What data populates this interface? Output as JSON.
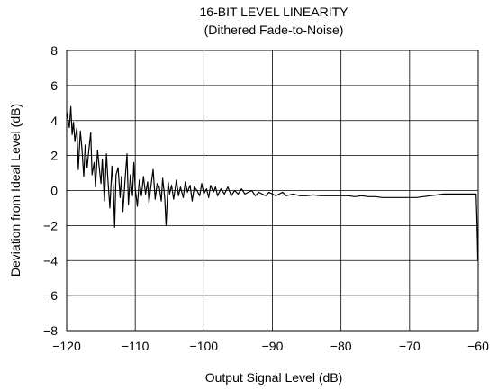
{
  "chart_data": {
    "type": "line",
    "title": "16-BIT LEVEL LINEARITY",
    "subtitle": "(Dithered Fade-to-Noise)",
    "xlabel": "Output Signal Level (dB)",
    "ylabel": "Deviation from Ideal Level (dB)",
    "xlim": [
      -120,
      -60
    ],
    "ylim": [
      -8,
      8
    ],
    "xticks": [
      -120,
      -110,
      -100,
      -90,
      -80,
      -70,
      -60
    ],
    "yticks": [
      -8,
      -6,
      -4,
      -2,
      0,
      2,
      4,
      6,
      8
    ],
    "xtick_labels": [
      "−120",
      "−110",
      "−100",
      "−90",
      "−80",
      "−70",
      "−60"
    ],
    "ytick_labels": [
      "−8",
      "−6",
      "−4",
      "−2",
      "0",
      "2",
      "4",
      "6",
      "8"
    ],
    "grid": true,
    "line_color": "#000000",
    "series": [
      {
        "values_x": [
          -120,
          -119.6,
          -119.4,
          -119.2,
          -119,
          -118.8,
          -118.5,
          -118.3,
          -118,
          -117.8,
          -117.5,
          -117.3,
          -117,
          -116.8,
          -116.5,
          -116.3,
          -116,
          -115.8,
          -115.5,
          -115.2,
          -115,
          -114.8,
          -114.5,
          -114.2,
          -114,
          -113.7,
          -113.4,
          -113.2,
          -113,
          -112.8,
          -112.5,
          -112.2,
          -112,
          -111.8,
          -111.5,
          -111.2,
          -111,
          -110.7,
          -110.4,
          -110.2,
          -110,
          -109.7,
          -109.4,
          -109.1,
          -108.8,
          -108.5,
          -108.2,
          -108,
          -107.7,
          -107.4,
          -107.1,
          -106.8,
          -106.5,
          -106.2,
          -106,
          -105.7,
          -105.5,
          -105.2,
          -105,
          -104.7,
          -104.4,
          -104,
          -103.7,
          -103.4,
          -103,
          -102.7,
          -102.4,
          -102,
          -101.7,
          -101.4,
          -101,
          -100.6,
          -100.3,
          -100,
          -99.6,
          -99.3,
          -99,
          -98.6,
          -98.3,
          -98,
          -97.5,
          -97,
          -96.5,
          -96,
          -95.5,
          -95,
          -94.5,
          -94,
          -93.5,
          -93,
          -92.5,
          -92,
          -91.5,
          -91,
          -90.5,
          -90,
          -89.5,
          -89,
          -88.5,
          -88,
          -87,
          -86,
          -85,
          -84,
          -83,
          -82,
          -81,
          -80,
          -79,
          -78,
          -77,
          -76,
          -75,
          -74,
          -73,
          -72,
          -71,
          -70,
          -69,
          -68,
          -67,
          -66,
          -65,
          -64.5,
          -64,
          -63,
          -62,
          -61,
          -60.3,
          -60.2,
          -60.1,
          -60.05
        ],
        "values": [
          4.5,
          3.6,
          4.8,
          3.2,
          3.9,
          2.8,
          3.6,
          1.2,
          3.4,
          2.5,
          0.8,
          2.6,
          1.3,
          2.2,
          3.3,
          0.9,
          1.6,
          0.2,
          2.3,
          1.1,
          0.4,
          1.8,
          -0.6,
          2.1,
          0.7,
          -1.0,
          1.4,
          0.2,
          -2.1,
          0.9,
          1.3,
          -0.4,
          0.8,
          -1.2,
          0.5,
          2.1,
          -0.8,
          0.9,
          -0.3,
          1.6,
          0.1,
          -0.9,
          0.6,
          -0.3,
          0.8,
          -0.2,
          0.5,
          -0.7,
          0.3,
          1.2,
          -0.5,
          0.4,
          0.2,
          -0.6,
          0.7,
          -0.4,
          -2.0,
          0.5,
          -0.2,
          0.3,
          -0.5,
          0.6,
          -0.3,
          0.2,
          -0.4,
          0.5,
          -0.1,
          0.3,
          -0.6,
          0.2,
          0.0,
          -0.3,
          0.4,
          -0.2,
          0.1,
          -0.4,
          0.3,
          -0.1,
          0.2,
          -0.3,
          0.1,
          -0.2,
          0.2,
          -0.3,
          0.0,
          -0.2,
          0.1,
          -0.2,
          -0.1,
          0.0,
          -0.3,
          -0.1,
          -0.2,
          -0.3,
          -0.1,
          -0.2,
          -0.3,
          -0.2,
          -0.1,
          -0.3,
          -0.2,
          -0.3,
          -0.3,
          -0.25,
          -0.3,
          -0.3,
          -0.3,
          -0.3,
          -0.3,
          -0.35,
          -0.3,
          -0.35,
          -0.35,
          -0.4,
          -0.4,
          -0.4,
          -0.4,
          -0.4,
          -0.4,
          -0.35,
          -0.3,
          -0.25,
          -0.2,
          -0.2,
          -0.2,
          -0.2,
          -0.2,
          -0.2,
          -0.2,
          -1.5,
          -3.0,
          -4.0
        ]
      }
    ]
  }
}
